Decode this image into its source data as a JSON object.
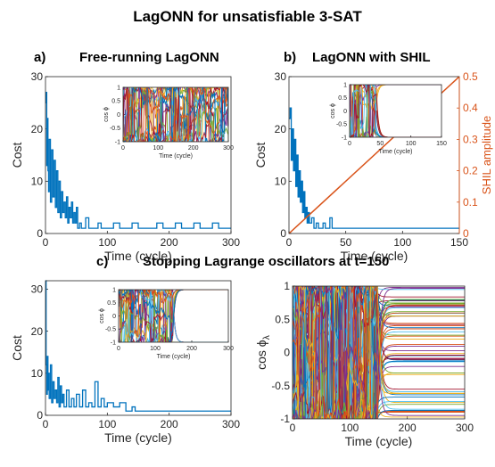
{
  "figure": {
    "title": "LagONN for unsatisfiable 3-SAT",
    "panel_a": {
      "letter": "a)",
      "title": "Free-running LagONN"
    },
    "panel_b": {
      "letter": "b)",
      "title": "LagONN with SHIL"
    },
    "panel_c": {
      "letter": "c)",
      "title": "Stopping Lagrange oscillators at t=150"
    }
  },
  "chart_data": [
    {
      "id": "a_main",
      "type": "line",
      "xlabel": "Time (cycle)",
      "ylabel": "Cost",
      "xlim": [
        0,
        300
      ],
      "ylim": [
        0,
        30
      ],
      "xticks": [
        0,
        100,
        200,
        300
      ],
      "yticks": [
        0,
        10,
        20,
        30
      ],
      "color": "#0072BD",
      "series": [
        {
          "x": [
            0,
            1,
            2,
            3,
            4,
            5,
            6,
            8,
            10,
            12,
            14,
            16,
            18,
            20,
            22,
            24,
            26,
            28,
            30,
            32,
            34,
            36,
            38,
            40,
            42,
            44,
            46,
            48,
            50,
            52,
            55,
            58,
            62,
            65,
            70,
            80,
            85,
            90,
            100,
            110,
            120,
            130,
            140,
            150,
            160,
            170,
            180,
            190,
            200,
            210,
            220,
            230,
            240,
            250,
            260,
            270,
            280,
            290,
            300
          ],
          "values": [
            25,
            27,
            13,
            22,
            12,
            8,
            18,
            6,
            16,
            7,
            14,
            5,
            12,
            4,
            10,
            3,
            8,
            4,
            6,
            3,
            7,
            2,
            5,
            3,
            6,
            2,
            4,
            2,
            5,
            1,
            2,
            1,
            1,
            3,
            1,
            1,
            2,
            1,
            1,
            2,
            1,
            1,
            2,
            1,
            1,
            1,
            2,
            1,
            1,
            2,
            1,
            1,
            2,
            1,
            1,
            2,
            1,
            1,
            1
          ]
        }
      ]
    },
    {
      "id": "a_inset",
      "type": "line",
      "xlabel": "Time (cycle)",
      "ylabel": "cos ϕ",
      "xlim": [
        0,
        300
      ],
      "ylim": [
        -1,
        1
      ],
      "xticks": [
        0,
        100,
        200,
        300
      ],
      "yticks": [
        -1,
        -0.5,
        0,
        0.5,
        1
      ],
      "colors": [
        "#0072BD",
        "#D95319",
        "#EDB120",
        "#7E2F8E",
        "#77AC30",
        "#4DBEEE",
        "#A2142F"
      ]
    },
    {
      "id": "b_main",
      "type": "line",
      "xlabel": "Time (cycle)",
      "ylabel": "Cost",
      "y2label": "SHIL amplitude",
      "xlim": [
        0,
        150
      ],
      "ylim": [
        0,
        30
      ],
      "y2lim": [
        0,
        0.5
      ],
      "xticks": [
        0,
        50,
        100,
        150
      ],
      "yticks": [
        0,
        10,
        20,
        30
      ],
      "y2ticks": [
        0,
        0.1,
        0.2,
        0.3,
        0.4,
        0.5
      ],
      "series": [
        {
          "name": "",
          "color": "#0072BD",
          "x": [
            0,
            1,
            2,
            3,
            4,
            5,
            6,
            7,
            8,
            9,
            10,
            11,
            12,
            13,
            14,
            15,
            16,
            17,
            18,
            20,
            22,
            24,
            26,
            28,
            30,
            32,
            34,
            36,
            38,
            40,
            45,
            50,
            100,
            150
          ],
          "values": [
            22,
            24,
            14,
            20,
            12,
            18,
            9,
            15,
            7,
            12,
            6,
            10,
            4,
            8,
            3,
            5,
            2,
            4,
            2,
            3,
            1,
            2,
            1,
            1,
            2,
            1,
            1,
            3,
            1,
            1,
            1,
            1,
            1,
            1
          ]
        },
        {
          "name": "",
          "color": "#D95319",
          "axis": "right",
          "x": [
            0,
            150
          ],
          "values": [
            0,
            0.5
          ]
        }
      ]
    },
    {
      "id": "b_inset",
      "type": "line",
      "xlabel": "Time (cycle)",
      "ylabel": "cos ϕ",
      "xlim": [
        0,
        150
      ],
      "ylim": [
        -1,
        1
      ],
      "xticks": [
        0,
        50,
        100,
        150
      ],
      "yticks": [
        -1,
        -0.5,
        0,
        0.5,
        1
      ]
    },
    {
      "id": "c_main",
      "type": "line",
      "xlabel": "Time (cycle)",
      "ylabel": "Cost",
      "xlim": [
        0,
        300
      ],
      "ylim": [
        0,
        32
      ],
      "xticks": [
        0,
        100,
        200,
        300
      ],
      "yticks": [
        0,
        10,
        20,
        30
      ],
      "color": "#0072BD",
      "series": [
        {
          "x": [
            0,
            1,
            2,
            3,
            4,
            5,
            6,
            8,
            10,
            12,
            14,
            16,
            18,
            20,
            22,
            24,
            26,
            28,
            30,
            34,
            38,
            42,
            46,
            50,
            55,
            60,
            65,
            70,
            75,
            80,
            85,
            90,
            95,
            100,
            110,
            120,
            130,
            140,
            145,
            150,
            200,
            250,
            300
          ],
          "values": [
            32,
            12,
            5,
            14,
            6,
            10,
            4,
            12,
            3,
            8,
            4,
            6,
            3,
            9,
            2,
            7,
            3,
            5,
            2,
            6,
            2,
            4,
            2,
            5,
            2,
            6,
            2,
            3,
            2,
            8,
            2,
            4,
            2,
            3,
            2,
            3,
            1,
            2,
            1,
            1,
            1,
            1,
            1
          ]
        }
      ]
    },
    {
      "id": "c_inset",
      "type": "line",
      "xlabel": "Time (cycle)",
      "ylabel": "cos ϕ",
      "xlim": [
        0,
        300
      ],
      "ylim": [
        -1,
        1
      ],
      "xticks": [
        0,
        100,
        200,
        300
      ],
      "yticks": [
        -1,
        -0.5,
        0,
        0.5,
        1
      ]
    },
    {
      "id": "c_lambda",
      "type": "line",
      "xlabel": "Time (cycle)",
      "ylabel": "cos ϕ",
      "ylabel_sub": "λ",
      "xlim": [
        0,
        300
      ],
      "ylim": [
        -1,
        1
      ],
      "xticks": [
        0,
        100,
        200,
        300
      ],
      "yticks": [
        -1,
        -0.5,
        0,
        0.5,
        1
      ],
      "stop_time": 150
    }
  ]
}
